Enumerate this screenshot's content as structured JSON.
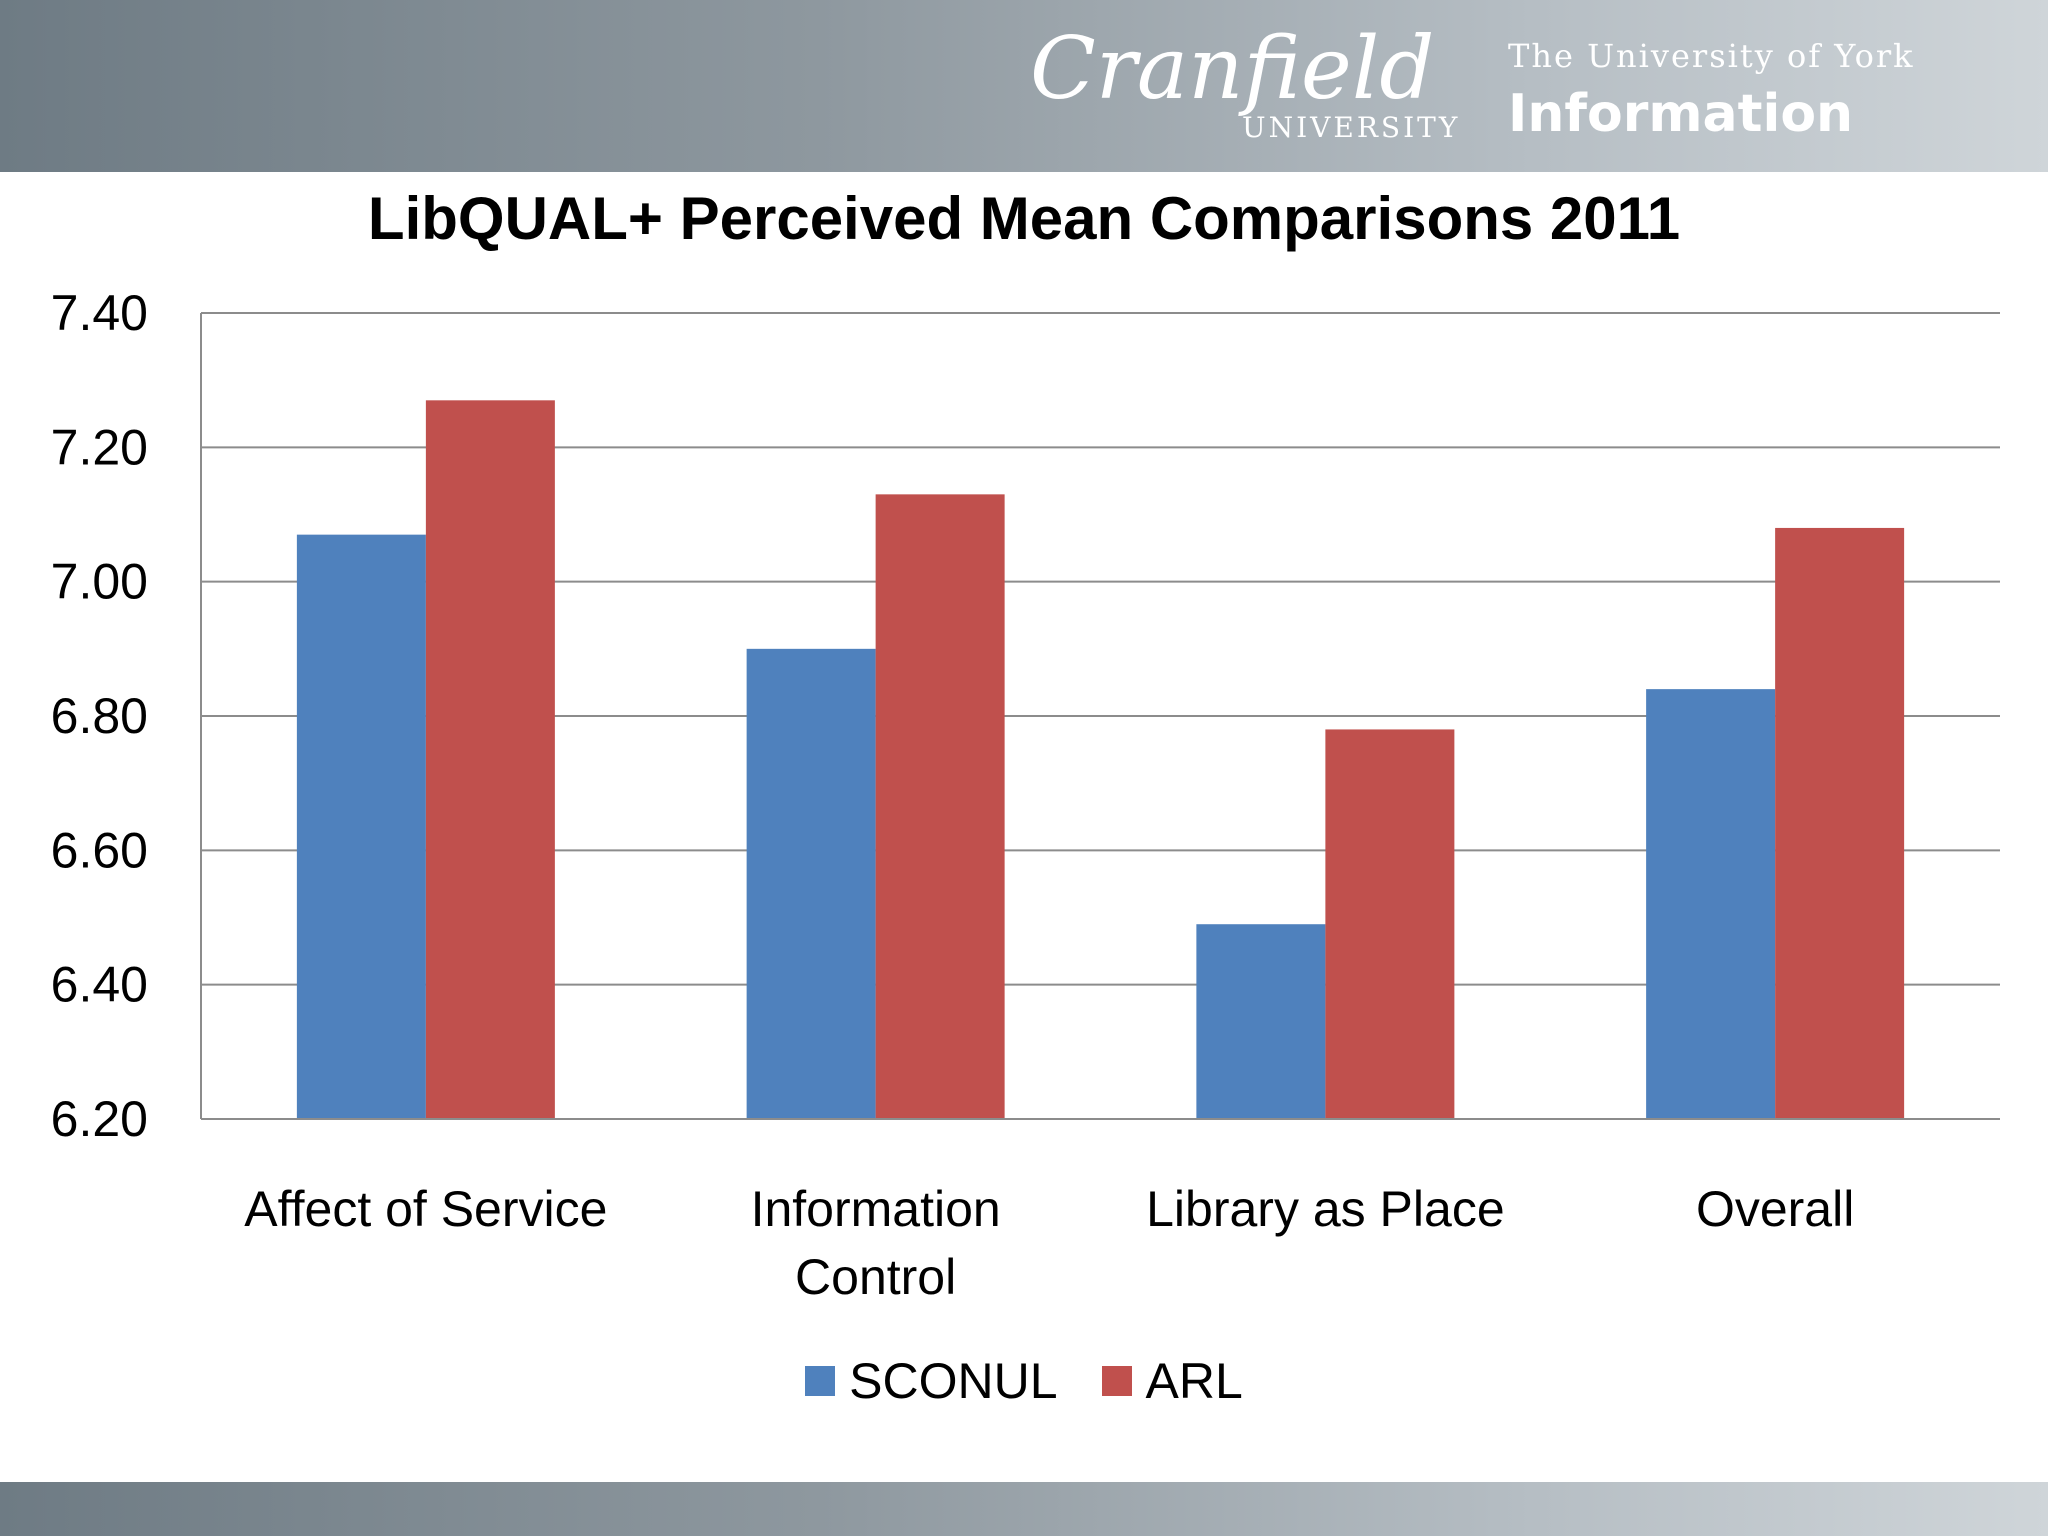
{
  "header": {
    "logo_cranfield": "Cranfield",
    "logo_cranfield_sub": "UNIVERSITY",
    "logo_york_top": "The University of York",
    "logo_york_bottom": "Information"
  },
  "colors": {
    "sconul": "#4f81bd",
    "arl": "#c0504d",
    "grid": "#8c8c8c"
  },
  "chart_data": {
    "type": "bar",
    "title": "LibQUAL+ Perceived Mean Comparisons 2011",
    "categories": [
      [
        "Affect of Service"
      ],
      [
        "Information",
        "Control"
      ],
      [
        "Library as Place"
      ],
      [
        "Overall"
      ]
    ],
    "series": [
      {
        "name": "SCONUL",
        "values": [
          7.07,
          6.9,
          6.49,
          6.84
        ]
      },
      {
        "name": "ARL",
        "values": [
          7.27,
          7.13,
          6.78,
          7.08
        ]
      }
    ],
    "ylim": [
      6.2,
      7.4
    ],
    "yticks": [
      "6.20",
      "6.40",
      "6.60",
      "6.80",
      "7.00",
      "7.20",
      "7.40"
    ],
    "grid": true,
    "legend": "bottom"
  }
}
